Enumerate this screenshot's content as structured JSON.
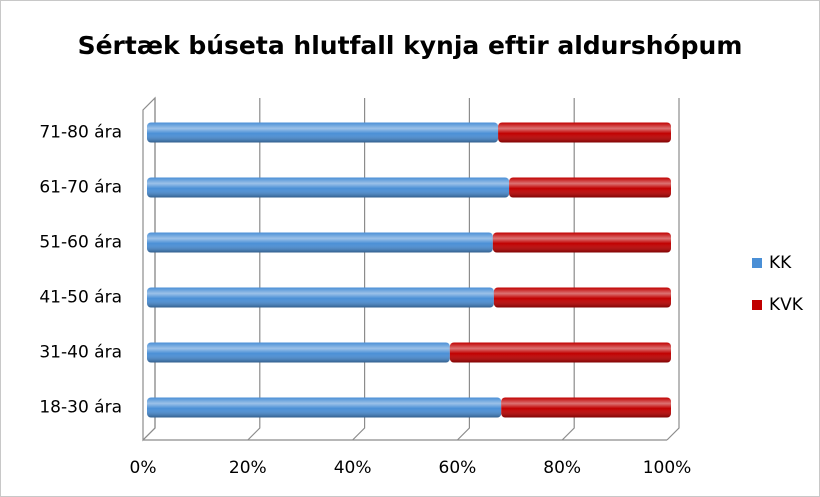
{
  "chart_data": {
    "type": "bar",
    "orientation": "horizontal",
    "stacked": true,
    "title": "Sértæk búseta hlutfall kynja eftir aldurshópum",
    "categories": [
      "18-30 ára",
      "31-40 ára",
      "41-50 ára",
      "51-60 ára",
      "61-70 ára",
      "71-80 ára"
    ],
    "series": [
      {
        "name": "KK",
        "color": "#4a8fd6",
        "values": [
          67.6,
          57.8,
          66.2,
          66.0,
          69.1,
          67.0
        ]
      },
      {
        "name": "KVK",
        "color": "#c00000",
        "values": [
          32.4,
          42.2,
          33.8,
          34.0,
          30.9,
          33.0
        ]
      }
    ],
    "xlim": [
      0,
      100
    ],
    "xticks": [
      {
        "value": 0,
        "label": "0%"
      },
      {
        "value": 20,
        "label": "20%"
      },
      {
        "value": 40,
        "label": "40%"
      },
      {
        "value": 60,
        "label": "60%"
      },
      {
        "value": 80,
        "label": "80%"
      },
      {
        "value": 100,
        "label": "100%"
      }
    ],
    "grid": true,
    "legend": "right"
  }
}
